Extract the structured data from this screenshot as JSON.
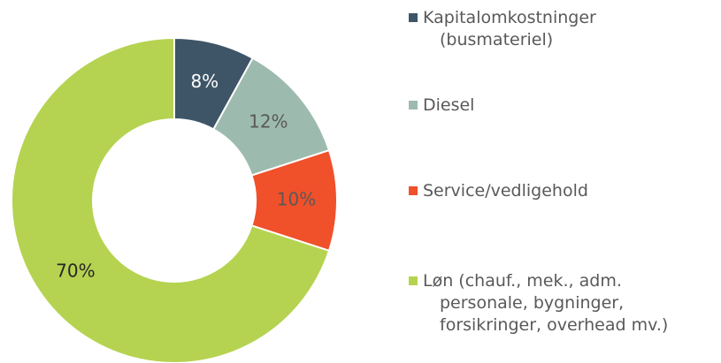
{
  "chart_data": {
    "type": "donut",
    "categories": [
      "Kapitalomkostninger\n(busmateriel)",
      "Diesel",
      "Service/vedligehold",
      "Løn (chauf., mek., adm.\npersonale, bygninger,\nforsikringer, overhead mv.)"
    ],
    "values": [
      8,
      12,
      10,
      70
    ],
    "value_labels": [
      "8%",
      "12%",
      "10%",
      "70%"
    ],
    "colors": [
      "#3e5567",
      "#9dbaae",
      "#f0502a",
      "#b5d350"
    ],
    "label_colors": [
      "#ffffff",
      "#595959",
      "#595959",
      "#262626"
    ],
    "legend": "right"
  }
}
